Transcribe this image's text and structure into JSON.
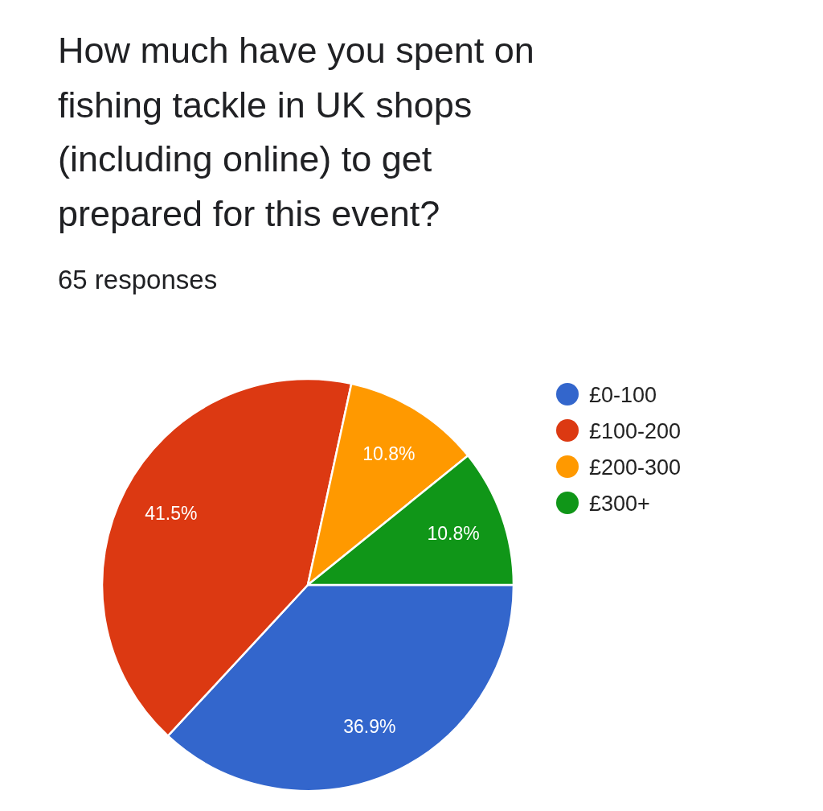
{
  "chart_data": {
    "type": "pie",
    "title": "How much have you spent on fishing tackle in UK shops (including online) to get prepared for this event?",
    "subtitle": "65 responses",
    "categories": [
      "£0-100",
      "£100-200",
      "£200-300",
      "£300+"
    ],
    "values": [
      36.9,
      41.5,
      10.8,
      10.8
    ],
    "colors": [
      "#3366cc",
      "#dc3912",
      "#ff9900",
      "#109618"
    ],
    "value_labels": [
      "36.9%",
      "41.5%",
      "10.8%",
      "10.8%"
    ],
    "legend": "right"
  }
}
